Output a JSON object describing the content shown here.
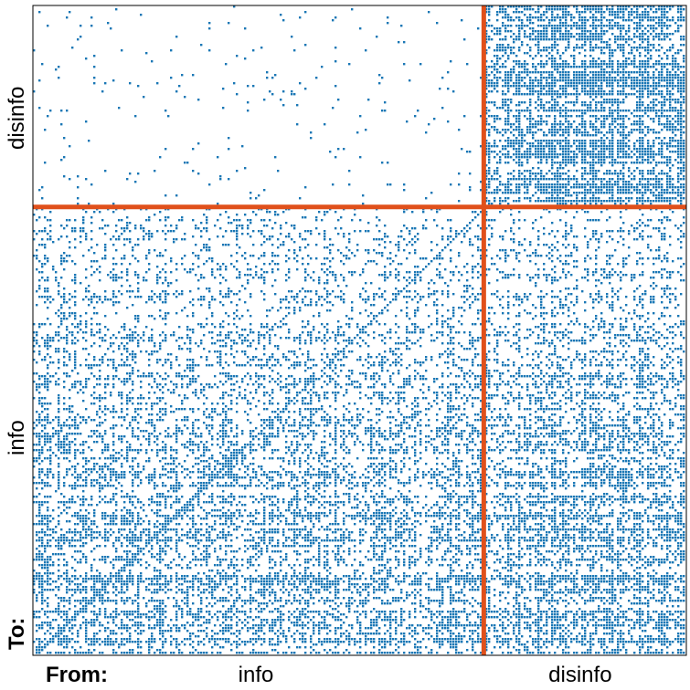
{
  "chart_data": {
    "type": "heatmap",
    "title": "",
    "x_axis_prefix": "From:",
    "y_axis_prefix": "To:",
    "x_groups": [
      {
        "label": "info",
        "fraction": 0.69
      },
      {
        "label": "disinfo",
        "fraction": 0.31
      }
    ],
    "y_groups": [
      {
        "label": "disinfo",
        "fraction": 0.31
      },
      {
        "label": "info",
        "fraction": 0.69
      }
    ],
    "blocks": [
      {
        "from": "info",
        "to": "disinfo",
        "density": 0.02
      },
      {
        "from": "disinfo",
        "to": "disinfo",
        "density": 0.6
      },
      {
        "from": "info",
        "to": "info",
        "density": 0.3
      },
      {
        "from": "disinfo",
        "to": "info",
        "density": 0.35
      }
    ],
    "cell_color": "#1a77b5",
    "separator_color": "#e0501b",
    "grid": false
  }
}
